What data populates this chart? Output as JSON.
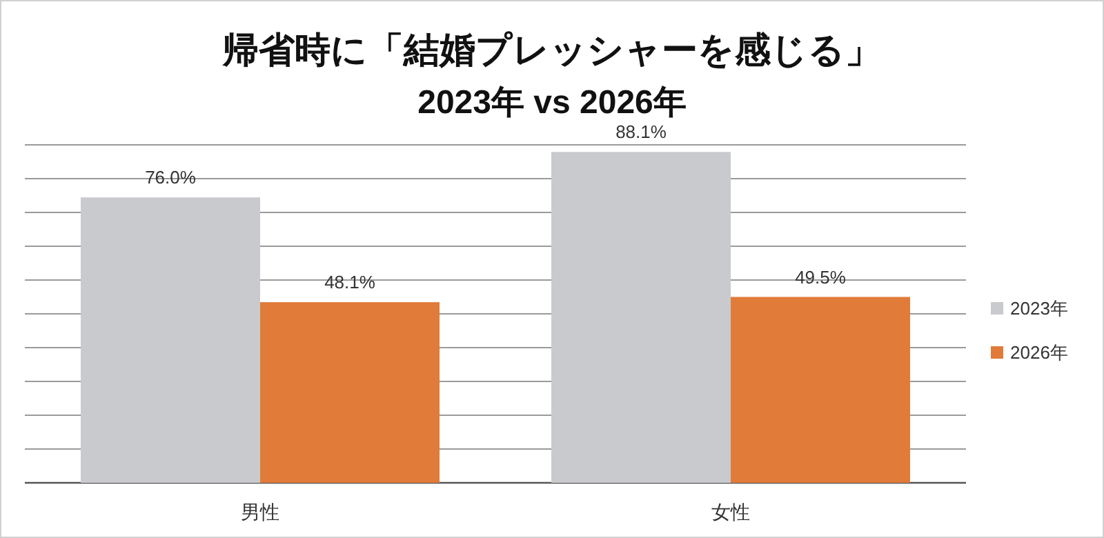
{
  "chart_data": {
    "type": "bar",
    "title": "帰省時に「結婚プレッシャーを感じる」",
    "subtitle": "2023年 vs 2026年",
    "categories": [
      "男性",
      "女性"
    ],
    "series": [
      {
        "name": "2023年",
        "color": "#c9cacd",
        "values": [
          76.0,
          88.1
        ],
        "value_labels": [
          "76.0%",
          "88.1%"
        ]
      },
      {
        "name": "2026年",
        "color": "#e07b39",
        "values": [
          48.1,
          49.5
        ],
        "value_labels": [
          "48.1%",
          "49.5%"
        ]
      }
    ],
    "grid": "y",
    "legend": "right"
  }
}
